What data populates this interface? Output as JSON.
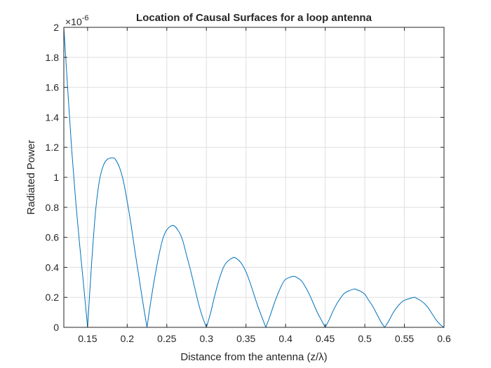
{
  "chart_data": {
    "type": "line",
    "title": "Location of Causal Surfaces for a loop antenna",
    "xlabel": "Distance from the antenna (z/λ)",
    "ylabel": "Radiated Power",
    "y_exponent_label": "×10",
    "y_exponent_power": "-6",
    "xlim": [
      0.12,
      0.6
    ],
    "ylim": [
      0,
      2
    ],
    "y_scale": 1e-06,
    "grid": true,
    "x_ticks": [
      0.15,
      0.2,
      0.25,
      0.3,
      0.35,
      0.4,
      0.45,
      0.5,
      0.55,
      0.6
    ],
    "x_tick_labels": [
      "0.15",
      "0.2",
      "0.25",
      "0.3",
      "0.35",
      "0.4",
      "0.45",
      "0.5",
      "0.55",
      "0.6"
    ],
    "y_ticks": [
      0,
      0.2,
      0.4,
      0.6,
      0.8,
      1,
      1.2,
      1.4,
      1.6,
      1.8,
      2
    ],
    "y_tick_labels": [
      "0",
      "0.2",
      "0.4",
      "0.6",
      "0.8",
      "1",
      "1.2",
      "1.4",
      "1.6",
      "1.8",
      "2"
    ],
    "series": [
      {
        "color": "#0072bd",
        "x": [
          0.12,
          0.125,
          0.13,
          0.135,
          0.14,
          0.145,
          0.15,
          0.155,
          0.16,
          0.165,
          0.17,
          0.175,
          0.1818,
          0.185,
          0.19,
          0.195,
          0.2,
          0.205,
          0.21,
          0.215,
          0.22,
          0.225,
          0.23,
          0.235,
          0.24,
          0.245,
          0.25,
          0.258,
          0.265,
          0.27,
          0.275,
          0.28,
          0.285,
          0.29,
          0.295,
          0.3,
          0.305,
          0.31,
          0.315,
          0.32,
          0.325,
          0.334,
          0.34,
          0.345,
          0.35,
          0.355,
          0.36,
          0.365,
          0.37,
          0.375,
          0.38,
          0.385,
          0.39,
          0.395,
          0.4,
          0.41,
          0.415,
          0.42,
          0.425,
          0.43,
          0.435,
          0.44,
          0.445,
          0.45,
          0.455,
          0.46,
          0.465,
          0.47,
          0.475,
          0.486,
          0.49,
          0.495,
          0.5,
          0.505,
          0.51,
          0.515,
          0.52,
          0.525,
          0.53,
          0.535,
          0.54,
          0.545,
          0.55,
          0.562,
          0.565,
          0.57,
          0.575,
          0.58,
          0.585,
          0.59,
          0.595,
          0.6
        ],
        "y": [
          2.0,
          1.58,
          1.18,
          0.84,
          0.55,
          0.28,
          0.0,
          0.42,
          0.77,
          0.98,
          1.08,
          1.12,
          1.13,
          1.12,
          1.07,
          0.98,
          0.84,
          0.68,
          0.5,
          0.33,
          0.16,
          0.0,
          0.18,
          0.34,
          0.48,
          0.59,
          0.65,
          0.68,
          0.64,
          0.58,
          0.48,
          0.38,
          0.27,
          0.16,
          0.07,
          0.0,
          0.09,
          0.2,
          0.3,
          0.38,
          0.43,
          0.465,
          0.45,
          0.42,
          0.37,
          0.3,
          0.22,
          0.14,
          0.07,
          0.0,
          0.07,
          0.15,
          0.22,
          0.28,
          0.32,
          0.34,
          0.33,
          0.31,
          0.27,
          0.22,
          0.16,
          0.1,
          0.05,
          0.0,
          0.05,
          0.11,
          0.16,
          0.2,
          0.23,
          0.255,
          0.25,
          0.24,
          0.22,
          0.18,
          0.14,
          0.09,
          0.04,
          0.0,
          0.04,
          0.09,
          0.13,
          0.16,
          0.18,
          0.2,
          0.195,
          0.18,
          0.16,
          0.13,
          0.09,
          0.05,
          0.02,
          0.0
        ]
      }
    ]
  }
}
